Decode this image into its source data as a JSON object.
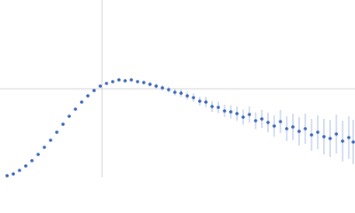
{
  "chart_data": {
    "type": "scatter",
    "color": "#3461b5",
    "error_color": "#a8bde6",
    "grid": true,
    "xlim": [
      0,
      4
    ],
    "ylim": [
      0,
      2
    ],
    "xticks": [
      1.15
    ],
    "yticks": [
      1
    ],
    "x": [
      0.08,
      0.15,
      0.22,
      0.29,
      0.36,
      0.43,
      0.5,
      0.57,
      0.64,
      0.71,
      0.78,
      0.85,
      0.92,
      0.99,
      1.06,
      1.13,
      1.2,
      1.27,
      1.34,
      1.41,
      1.48,
      1.55,
      1.62,
      1.69,
      1.76,
      1.83,
      1.9,
      1.97,
      2.04,
      2.11,
      2.18,
      2.25,
      2.32,
      2.39,
      2.46,
      2.53,
      2.6,
      2.67,
      2.74,
      2.81,
      2.88,
      2.95,
      3.02,
      3.09,
      3.16,
      3.23,
      3.3,
      3.37,
      3.44,
      3.51,
      3.58,
      3.65,
      3.72,
      3.79,
      3.86,
      3.93,
      3.98
    ],
    "values": [
      0.02,
      0.04,
      0.08,
      0.13,
      0.19,
      0.26,
      0.34,
      0.42,
      0.51,
      0.6,
      0.69,
      0.77,
      0.85,
      0.92,
      0.98,
      1.03,
      1.06,
      1.08,
      1.1,
      1.09,
      1.1,
      1.08,
      1.07,
      1.05,
      1.03,
      1.01,
      0.99,
      0.96,
      0.95,
      0.92,
      0.9,
      0.86,
      0.85,
      0.8,
      0.79,
      0.75,
      0.74,
      0.72,
      0.68,
      0.71,
      0.64,
      0.66,
      0.62,
      0.58,
      0.63,
      0.55,
      0.57,
      0.52,
      0.55,
      0.48,
      0.51,
      0.46,
      0.44,
      0.49,
      0.41,
      0.45,
      0.4
    ],
    "errors": [
      0.005,
      0.005,
      0.005,
      0.005,
      0.005,
      0.005,
      0.005,
      0.005,
      0.005,
      0.005,
      0.005,
      0.006,
      0.006,
      0.007,
      0.008,
      0.009,
      0.01,
      0.012,
      0.014,
      0.016,
      0.018,
      0.02,
      0.022,
      0.025,
      0.028,
      0.03,
      0.033,
      0.036,
      0.04,
      0.043,
      0.047,
      0.05,
      0.055,
      0.06,
      0.065,
      0.07,
      0.075,
      0.08,
      0.085,
      0.09,
      0.095,
      0.1,
      0.11,
      0.12,
      0.13,
      0.14,
      0.15,
      0.16,
      0.17,
      0.18,
      0.19,
      0.2,
      0.21,
      0.22,
      0.23,
      0.24,
      0.25
    ]
  }
}
